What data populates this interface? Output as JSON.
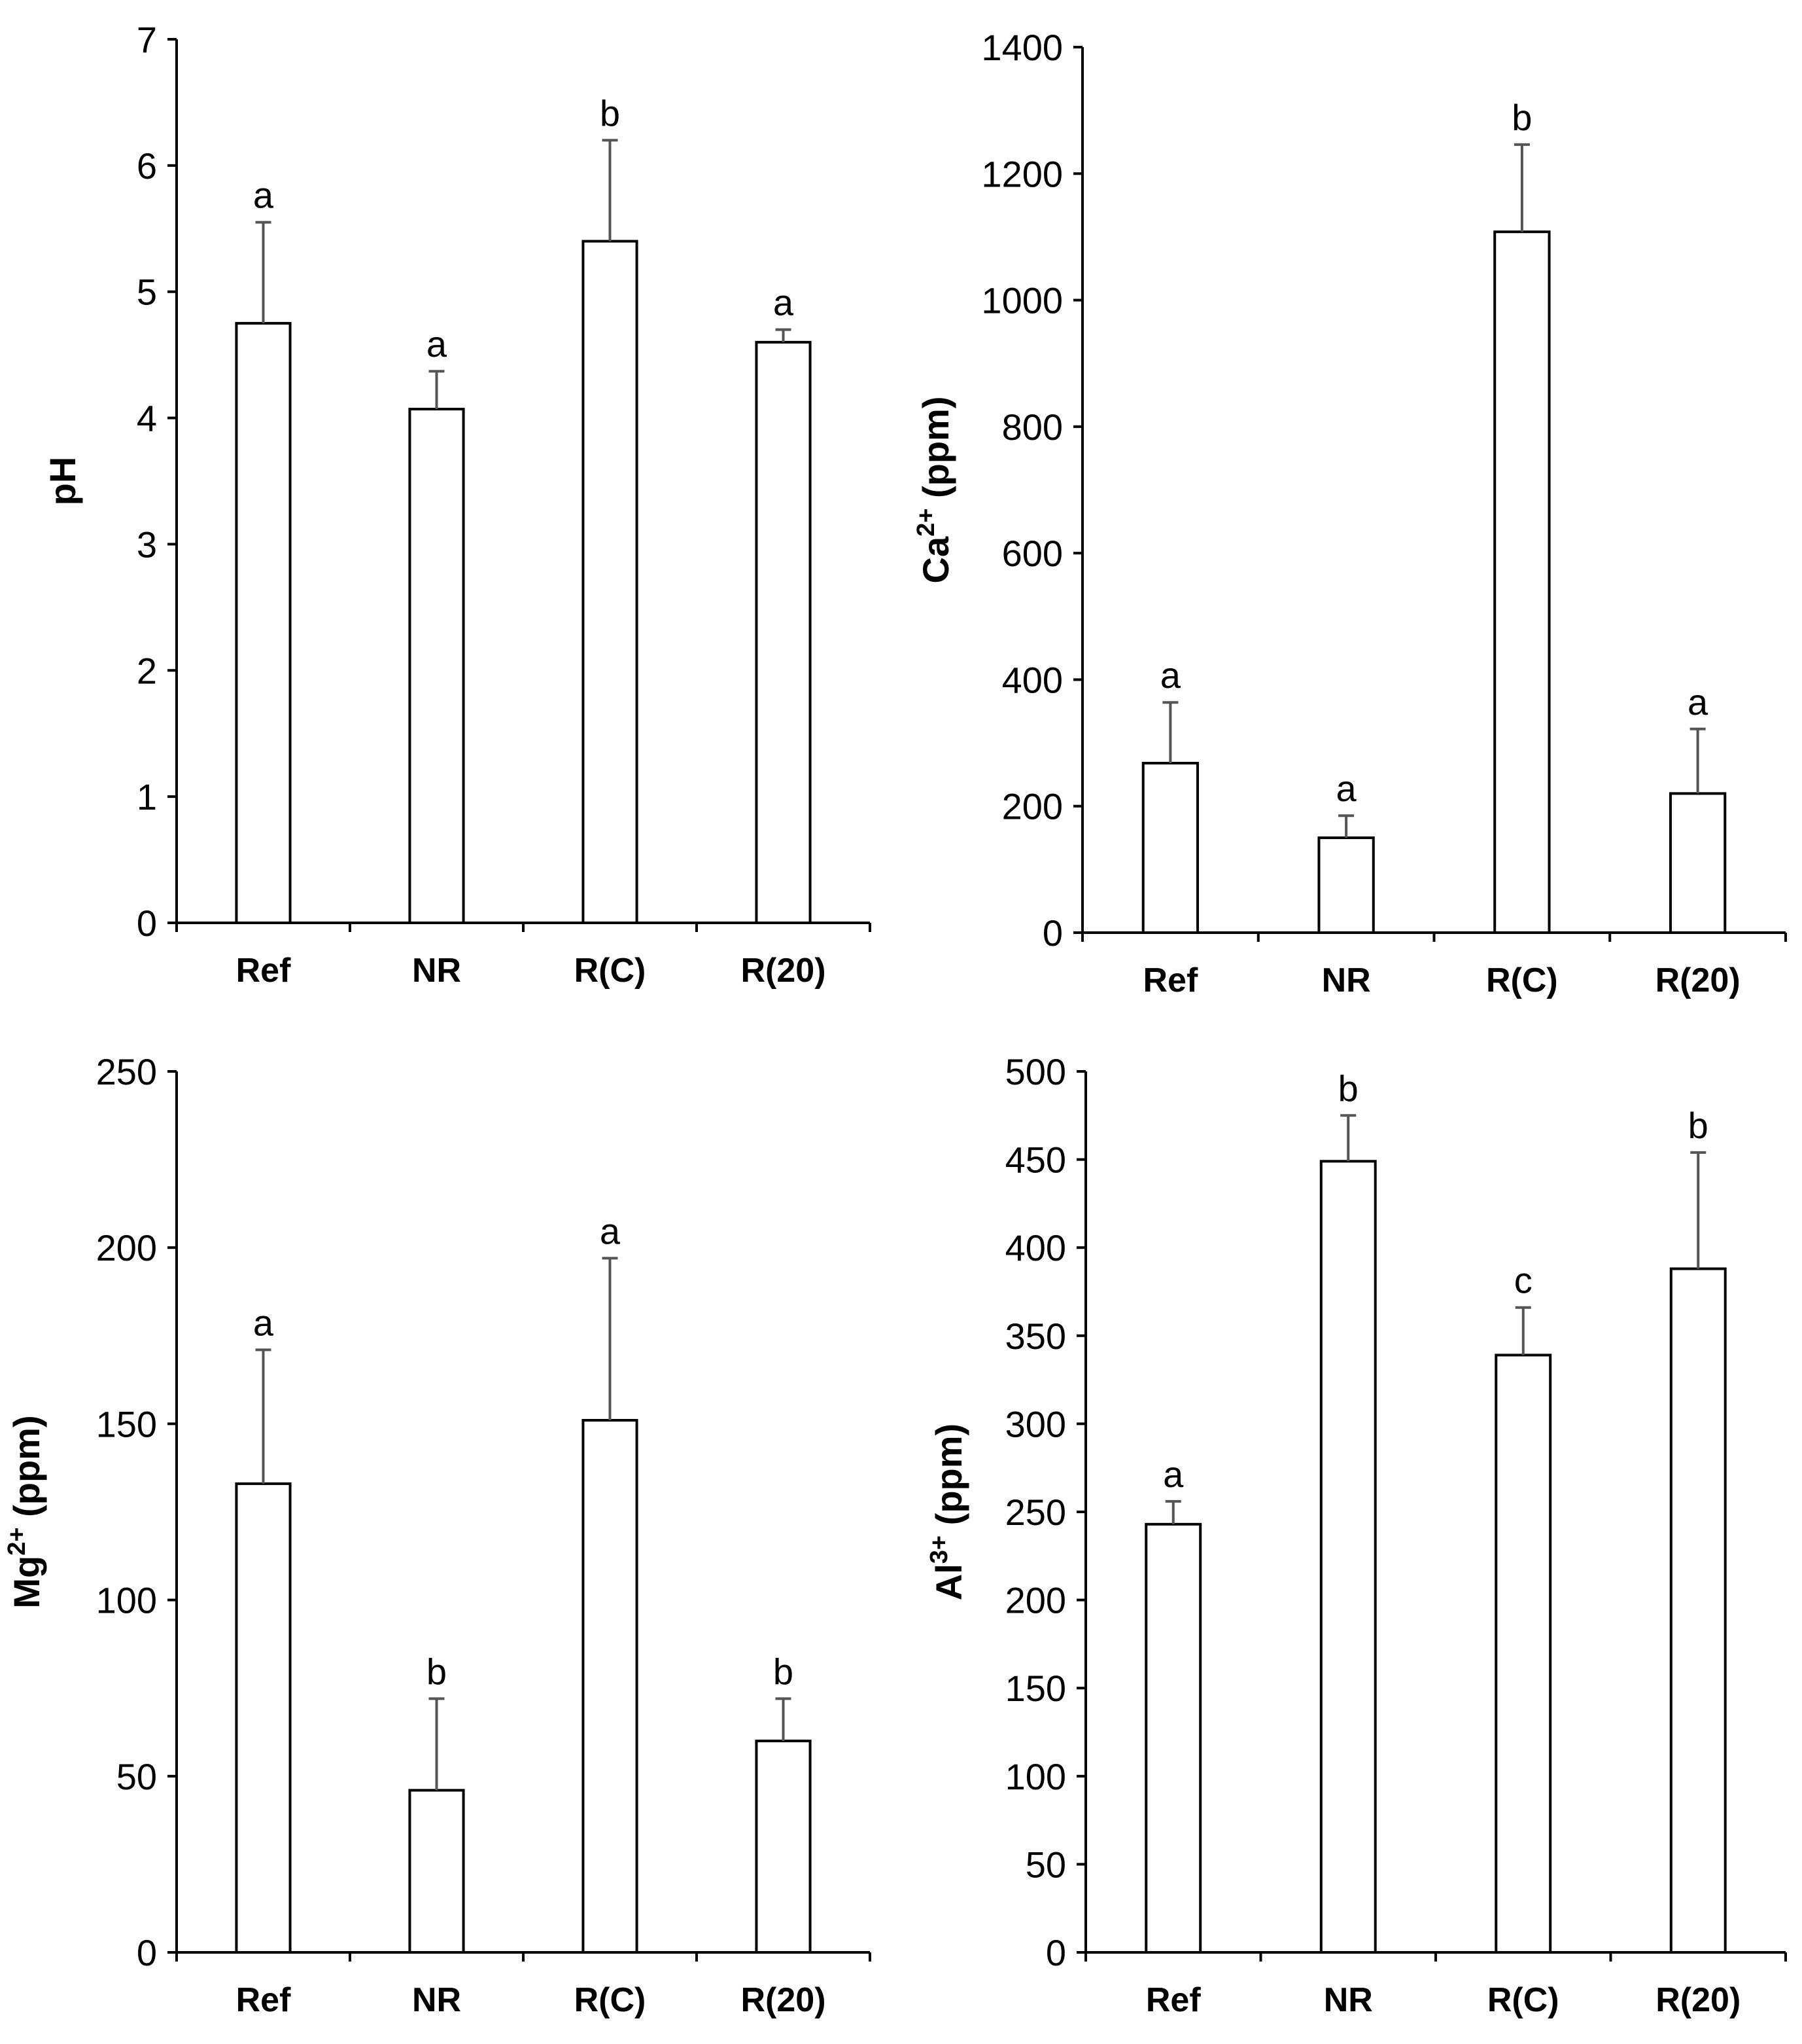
{
  "chart_data": [
    {
      "type": "bar",
      "panel": "top-left",
      "categories": [
        "Ref",
        "NR",
        "R(C)",
        "R(20)"
      ],
      "values": [
        4.75,
        4.07,
        5.4,
        4.6
      ],
      "errors": [
        0.8,
        0.3,
        0.8,
        0.1
      ],
      "significance": [
        "a",
        "a",
        "b",
        "a"
      ],
      "ylabel": "pH",
      "ylim": [
        0,
        7
      ],
      "yticks": [
        0,
        1,
        2,
        3,
        4,
        5,
        6,
        7
      ],
      "tick_labels": [
        "0",
        "1",
        "2",
        "3",
        "4",
        "5",
        "6",
        "7"
      ]
    },
    {
      "type": "bar",
      "panel": "top-right",
      "categories": [
        "Ref",
        "NR",
        "R(C)",
        "R(20)"
      ],
      "values": [
        268,
        150,
        1108,
        220
      ],
      "errors": [
        96,
        35,
        138,
        102
      ],
      "significance": [
        "a",
        "a",
        "b",
        "a"
      ],
      "ylabel_base": "Ca",
      "ylabel_sup": "2+",
      "ylabel_unit": " (ppm)",
      "ylim": [
        0,
        1400
      ],
      "yticks": [
        0,
        200,
        400,
        600,
        800,
        1000,
        1200,
        1400
      ],
      "tick_labels": [
        "0",
        "200",
        "400",
        "600",
        "800",
        "1000",
        "1200",
        "1400"
      ]
    },
    {
      "type": "bar",
      "panel": "bottom-left",
      "categories": [
        "Ref",
        "NR",
        "R(C)",
        "R(20)"
      ],
      "values": [
        133,
        46,
        151,
        60
      ],
      "errors": [
        38,
        26,
        46,
        12
      ],
      "significance": [
        "a",
        "b",
        "a",
        "b"
      ],
      "ylabel_base": "Mg",
      "ylabel_sup": "2+",
      "ylabel_unit": " (ppm)",
      "ylim": [
        0,
        250
      ],
      "yticks": [
        0,
        50,
        100,
        150,
        200,
        250
      ],
      "tick_labels": [
        "0",
        "50",
        "100",
        "150",
        "200",
        "250"
      ]
    },
    {
      "type": "bar",
      "panel": "bottom-right",
      "categories": [
        "Ref",
        "NR",
        "R(C)",
        "R(20)"
      ],
      "values": [
        243,
        449,
        339,
        388
      ],
      "errors": [
        13,
        26,
        27,
        66
      ],
      "significance": [
        "a",
        "b",
        "c",
        "b"
      ],
      "ylabel_base": "Al",
      "ylabel_sup": "3+",
      "ylabel_unit": " (ppm)",
      "ylim": [
        0,
        500
      ],
      "yticks": [
        0,
        50,
        100,
        150,
        200,
        250,
        300,
        350,
        400,
        450,
        500
      ],
      "tick_labels": [
        "0",
        "50",
        "100",
        "150",
        "200",
        "250",
        "300",
        "350",
        "400",
        "450",
        "500"
      ]
    }
  ]
}
